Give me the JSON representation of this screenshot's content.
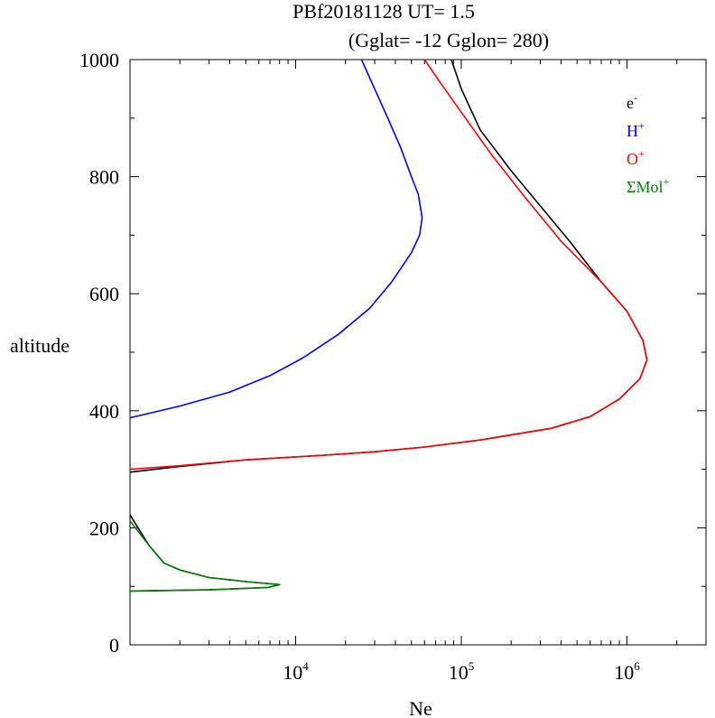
{
  "chart_data": {
    "type": "line",
    "title": "PBf20181128   UT=  1.5",
    "subtitle": "(Gglat= -12   Gglon=  280)",
    "xlabel": "Ne",
    "ylabel": "altitude",
    "x_scale": "log",
    "xlim": [
      1000,
      3000000
    ],
    "ylim": [
      0,
      1000
    ],
    "x_ticks": [
      {
        "value": 10000,
        "base": "10",
        "exp": "4"
      },
      {
        "value": 100000,
        "base": "10",
        "exp": "5"
      },
      {
        "value": 1000000,
        "base": "10",
        "exp": "6"
      }
    ],
    "y_ticks": [
      0,
      200,
      400,
      600,
      800,
      1000
    ],
    "legend_position": "top-right",
    "series": [
      {
        "name": "e",
        "name_sup": "-",
        "color": "#000000",
        "segments": [
          [
            [
              1000,
              92
            ],
            [
              3000,
              94
            ],
            [
              6800,
              98
            ],
            [
              8000,
              103
            ],
            [
              5000,
              108
            ],
            [
              3000,
              115
            ],
            [
              2000,
              128
            ],
            [
              1600,
              140
            ],
            [
              1300,
              170
            ],
            [
              1000,
              222
            ]
          ],
          [
            [
              1000,
              295
            ],
            [
              2000,
              305
            ],
            [
              5000,
              316
            ],
            [
              15000,
              324
            ],
            [
              30000,
              330
            ],
            [
              60000,
              338
            ],
            [
              130000,
              350
            ],
            [
              350000,
              370
            ],
            [
              600000,
              390
            ],
            [
              900000,
              420
            ],
            [
              1200000,
              455
            ],
            [
              1320000,
              487
            ],
            [
              1250000,
              520
            ],
            [
              1000000,
              570
            ],
            [
              700000,
              620
            ],
            [
              450000,
              690
            ],
            [
              300000,
              750
            ],
            [
              200000,
              810
            ],
            [
              130000,
              880
            ],
            [
              100000,
              950
            ],
            [
              87000,
              1000
            ]
          ]
        ]
      },
      {
        "name": "H",
        "name_sup": "+",
        "color": "#0000ff",
        "segments": [
          [
            [
              1000,
              388
            ],
            [
              2000,
              408
            ],
            [
              4000,
              432
            ],
            [
              7000,
              460
            ],
            [
              11000,
              490
            ],
            [
              18000,
              530
            ],
            [
              28000,
              575
            ],
            [
              38000,
              620
            ],
            [
              50000,
              670
            ],
            [
              56000,
              700
            ],
            [
              58000,
              730
            ],
            [
              55000,
              770
            ],
            [
              50000,
              800
            ],
            [
              43000,
              850
            ],
            [
              36000,
              900
            ],
            [
              30000,
              950
            ],
            [
              25000,
              1000
            ]
          ]
        ]
      },
      {
        "name": "O",
        "name_sup": "+",
        "color": "#ff0000",
        "segments": [
          [
            [
              1000,
              300
            ],
            [
              2000,
              306
            ],
            [
              5000,
              316
            ],
            [
              15000,
              324
            ],
            [
              30000,
              330
            ],
            [
              60000,
              338
            ],
            [
              130000,
              350
            ],
            [
              350000,
              370
            ],
            [
              600000,
              390
            ],
            [
              900000,
              420
            ],
            [
              1200000,
              455
            ],
            [
              1320000,
              487
            ],
            [
              1250000,
              520
            ],
            [
              1000000,
              570
            ],
            [
              700000,
              620
            ],
            [
              400000,
              690
            ],
            [
              250000,
              760
            ],
            [
              150000,
              840
            ],
            [
              100000,
              910
            ],
            [
              75000,
              960
            ],
            [
              60000,
              1000
            ]
          ]
        ]
      },
      {
        "name": "ΣMol",
        "name_sup": "+",
        "color": "#008000",
        "segments": [
          [
            [
              1000,
              92
            ],
            [
              3000,
              94
            ],
            [
              6800,
              98
            ],
            [
              8000,
              103
            ],
            [
              5000,
              108
            ],
            [
              3000,
              115
            ],
            [
              2000,
              128
            ],
            [
              1600,
              140
            ],
            [
              1300,
              170
            ],
            [
              1000,
              212
            ]
          ]
        ]
      }
    ]
  }
}
